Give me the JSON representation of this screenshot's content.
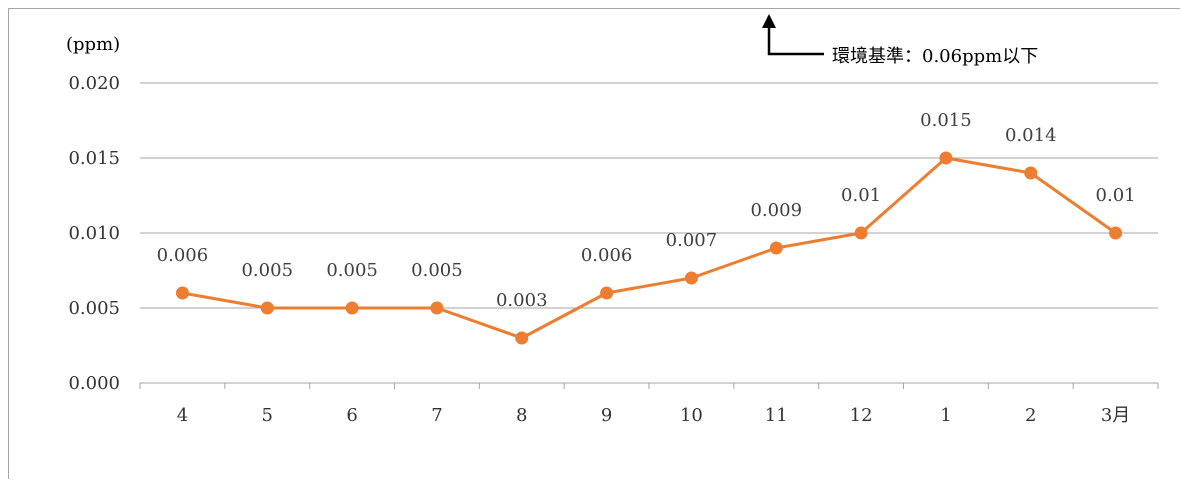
{
  "chart_data": {
    "type": "line",
    "unit_label": "(ppm)",
    "annotation": "環境基準：0.06ppm以下",
    "categories": [
      "4",
      "5",
      "6",
      "7",
      "8",
      "9",
      "10",
      "11",
      "12",
      "1",
      "2",
      "3月"
    ],
    "series": [
      {
        "values": [
          0.006,
          0.005,
          0.005,
          0.005,
          0.003,
          0.006,
          0.007,
          0.009,
          0.01,
          0.015,
          0.014,
          0.01
        ],
        "data_labels": [
          "0.006",
          "0.005",
          "0.005",
          "0.005",
          "0.003",
          "0.006",
          "0.007",
          "0.009",
          "0.01",
          "0.015",
          "0.014",
          "0.01"
        ],
        "color": "#ed7d31"
      }
    ],
    "ylim": [
      0,
      0.02
    ],
    "yticks": [
      "0.000",
      "0.005",
      "0.010",
      "0.015",
      "0.020"
    ],
    "grid": true,
    "gridline_color": "#a6a6a6"
  }
}
